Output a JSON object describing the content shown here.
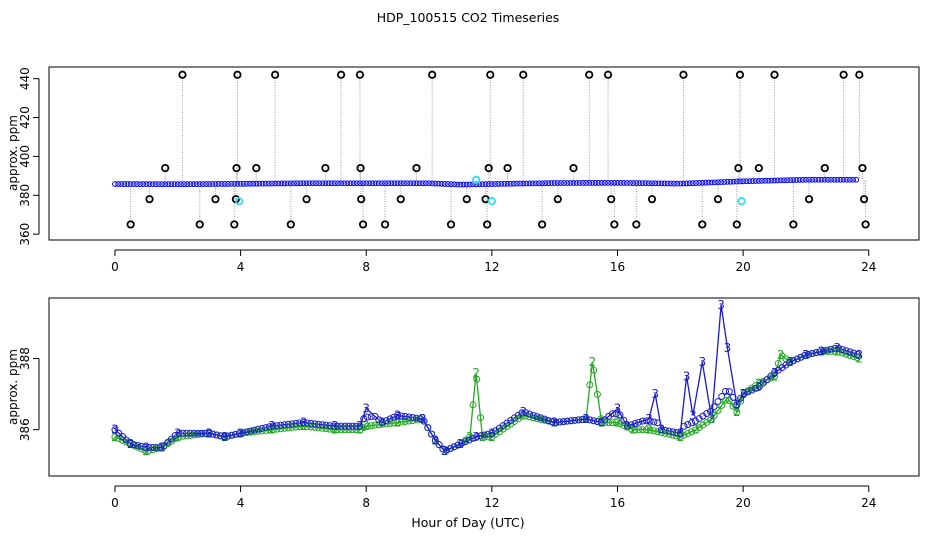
{
  "title": "HDP_100515  CO2 Timeseries",
  "xlabel": "Hour of Day (UTC)",
  "colors": {
    "raw": "#000000",
    "calib": "#33ddee",
    "series2": "#22aa22",
    "series3": "#1a1acc",
    "smooth": "#0000ff",
    "vline": "#999999"
  },
  "chart_data": [
    {
      "type": "scatter",
      "title": "HDP_100515  CO2 Timeseries",
      "xlabel": "",
      "ylabel": "approx. ppm",
      "xlim": [
        -2.1,
        25.6
      ],
      "ylim": [
        357,
        446
      ],
      "xticks": [
        "0",
        "4",
        "8",
        "12",
        "16",
        "20",
        "24"
      ],
      "yticks": [
        "360",
        "380",
        "400",
        "420",
        "440"
      ],
      "baseline": [
        [
          0,
          385.8
        ],
        [
          2,
          385.7
        ],
        [
          4,
          385.9
        ],
        [
          6,
          386.2
        ],
        [
          8,
          386.2
        ],
        [
          10,
          386.2
        ],
        [
          11,
          385.5
        ],
        [
          12,
          385.8
        ],
        [
          14,
          386.3
        ],
        [
          16,
          386.4
        ],
        [
          18,
          386.0
        ],
        [
          19.5,
          386.9
        ],
        [
          20,
          387.2
        ],
        [
          22,
          388.0
        ],
        [
          23.7,
          388.0
        ]
      ],
      "outliers": [
        {
          "x": 0.5,
          "y": 365
        },
        {
          "x": 1.1,
          "y": 378
        },
        {
          "x": 1.6,
          "y": 394
        },
        {
          "x": 2.15,
          "y": 442
        },
        {
          "x": 2.7,
          "y": 365
        },
        {
          "x": 3.2,
          "y": 378
        },
        {
          "x": 3.8,
          "y": 365
        },
        {
          "x": 3.85,
          "y": 378
        },
        {
          "x": 3.87,
          "y": 394
        },
        {
          "x": 3.9,
          "y": 442
        },
        {
          "x": 4.5,
          "y": 394
        },
        {
          "x": 5.1,
          "y": 442
        },
        {
          "x": 5.6,
          "y": 365
        },
        {
          "x": 6.1,
          "y": 378
        },
        {
          "x": 6.7,
          "y": 394
        },
        {
          "x": 7.2,
          "y": 442
        },
        {
          "x": 7.8,
          "y": 442
        },
        {
          "x": 7.82,
          "y": 394
        },
        {
          "x": 7.84,
          "y": 378
        },
        {
          "x": 7.9,
          "y": 365
        },
        {
          "x": 8.6,
          "y": 365
        },
        {
          "x": 9.1,
          "y": 378
        },
        {
          "x": 9.6,
          "y": 394
        },
        {
          "x": 10.1,
          "y": 442
        },
        {
          "x": 10.7,
          "y": 365
        },
        {
          "x": 11.2,
          "y": 378
        },
        {
          "x": 11.8,
          "y": 378
        },
        {
          "x": 11.85,
          "y": 365
        },
        {
          "x": 11.9,
          "y": 394
        },
        {
          "x": 11.95,
          "y": 442
        },
        {
          "x": 12.5,
          "y": 394
        },
        {
          "x": 13.0,
          "y": 442
        },
        {
          "x": 13.6,
          "y": 365
        },
        {
          "x": 14.1,
          "y": 378
        },
        {
          "x": 14.6,
          "y": 394
        },
        {
          "x": 15.1,
          "y": 442
        },
        {
          "x": 15.7,
          "y": 442
        },
        {
          "x": 15.8,
          "y": 378
        },
        {
          "x": 15.9,
          "y": 365
        },
        {
          "x": 16.6,
          "y": 365
        },
        {
          "x": 17.1,
          "y": 378
        },
        {
          "x": 18.1,
          "y": 442
        },
        {
          "x": 18.7,
          "y": 365
        },
        {
          "x": 19.2,
          "y": 378
        },
        {
          "x": 19.8,
          "y": 365
        },
        {
          "x": 19.85,
          "y": 394
        },
        {
          "x": 19.9,
          "y": 442
        },
        {
          "x": 20.5,
          "y": 394
        },
        {
          "x": 21.0,
          "y": 442
        },
        {
          "x": 21.6,
          "y": 365
        },
        {
          "x": 22.1,
          "y": 378
        },
        {
          "x": 22.6,
          "y": 394
        },
        {
          "x": 23.2,
          "y": 442
        },
        {
          "x": 23.7,
          "y": 442
        },
        {
          "x": 23.8,
          "y": 394
        },
        {
          "x": 23.85,
          "y": 378
        },
        {
          "x": 23.9,
          "y": 365
        }
      ],
      "calibration_points": [
        {
          "x": 3.95,
          "y": 377
        },
        {
          "x": 11.5,
          "y": 388
        },
        {
          "x": 12.0,
          "y": 377
        },
        {
          "x": 19.95,
          "y": 377
        }
      ]
    },
    {
      "type": "line",
      "xlabel": "Hour of Day (UTC)",
      "ylabel": "approx. ppm",
      "xlim": [
        -2.1,
        25.6
      ],
      "ylim": [
        384.7,
        389.7
      ],
      "xticks": [
        "0",
        "4",
        "8",
        "12",
        "16",
        "20",
        "24"
      ],
      "yticks": [
        "386",
        "388"
      ],
      "series": [
        {
          "name": "2",
          "points": [
            [
              0,
              385.8
            ],
            [
              0.5,
              385.6
            ],
            [
              1,
              385.4
            ],
            [
              1.5,
              385.5
            ],
            [
              2,
              385.8
            ],
            [
              3,
              385.9
            ],
            [
              3.5,
              385.8
            ],
            [
              4,
              385.9
            ],
            [
              5,
              386.0
            ],
            [
              6,
              386.1
            ],
            [
              7,
              386.0
            ],
            [
              7.8,
              386.0
            ],
            [
              8,
              386.1
            ],
            [
              9,
              386.2
            ],
            [
              9.8,
              386.3
            ],
            [
              10.2,
              385.7
            ],
            [
              10.5,
              385.4
            ],
            [
              11,
              385.6
            ],
            [
              11.3,
              385.8
            ],
            [
              11.5,
              387.6
            ],
            [
              11.7,
              385.8
            ],
            [
              12,
              385.8
            ],
            [
              13,
              386.4
            ],
            [
              14,
              386.2
            ],
            [
              15,
              386.3
            ],
            [
              15.2,
              387.9
            ],
            [
              15.5,
              386.2
            ],
            [
              16,
              386.2
            ],
            [
              16.5,
              386.0
            ],
            [
              17,
              386.0
            ],
            [
              18,
              385.8
            ],
            [
              18.5,
              386.0
            ],
            [
              19,
              386.3
            ],
            [
              19.5,
              386.9
            ],
            [
              19.8,
              386.5
            ],
            [
              20,
              387.0
            ],
            [
              20.5,
              387.3
            ],
            [
              21,
              387.5
            ],
            [
              21.2,
              388.1
            ],
            [
              21.5,
              387.9
            ],
            [
              22,
              388.1
            ],
            [
              22.5,
              388.2
            ],
            [
              23,
              388.2
            ],
            [
              23.7,
              388.0
            ]
          ]
        },
        {
          "name": "3",
          "points": [
            [
              0,
              386.0
            ],
            [
              0.5,
              385.6
            ],
            [
              1,
              385.5
            ],
            [
              1.5,
              385.5
            ],
            [
              2,
              385.9
            ],
            [
              3,
              385.9
            ],
            [
              3.5,
              385.8
            ],
            [
              4,
              385.9
            ],
            [
              5,
              386.1
            ],
            [
              6,
              386.2
            ],
            [
              7,
              386.1
            ],
            [
              7.8,
              386.1
            ],
            [
              8,
              386.6
            ],
            [
              8.5,
              386.2
            ],
            [
              9,
              386.4
            ],
            [
              9.8,
              386.3
            ],
            [
              10.2,
              385.7
            ],
            [
              10.5,
              385.4
            ],
            [
              11,
              385.6
            ],
            [
              11.5,
              385.8
            ],
            [
              12,
              385.9
            ],
            [
              13,
              386.5
            ],
            [
              14,
              386.2
            ],
            [
              15,
              386.3
            ],
            [
              15.5,
              386.2
            ],
            [
              16,
              386.6
            ],
            [
              16.3,
              386.1
            ],
            [
              17,
              386.3
            ],
            [
              17.2,
              387.0
            ],
            [
              17.4,
              386.0
            ],
            [
              18,
              385.9
            ],
            [
              18.2,
              387.5
            ],
            [
              18.4,
              386.4
            ],
            [
              18.7,
              387.9
            ],
            [
              19,
              386.3
            ],
            [
              19.3,
              389.5
            ],
            [
              19.5,
              388.3
            ],
            [
              19.8,
              386.7
            ],
            [
              20,
              387.0
            ],
            [
              20.5,
              387.2
            ],
            [
              21,
              387.6
            ],
            [
              21.5,
              387.9
            ],
            [
              22,
              388.1
            ],
            [
              22.5,
              388.2
            ],
            [
              23,
              388.3
            ],
            [
              23.7,
              388.1
            ]
          ]
        }
      ]
    }
  ]
}
